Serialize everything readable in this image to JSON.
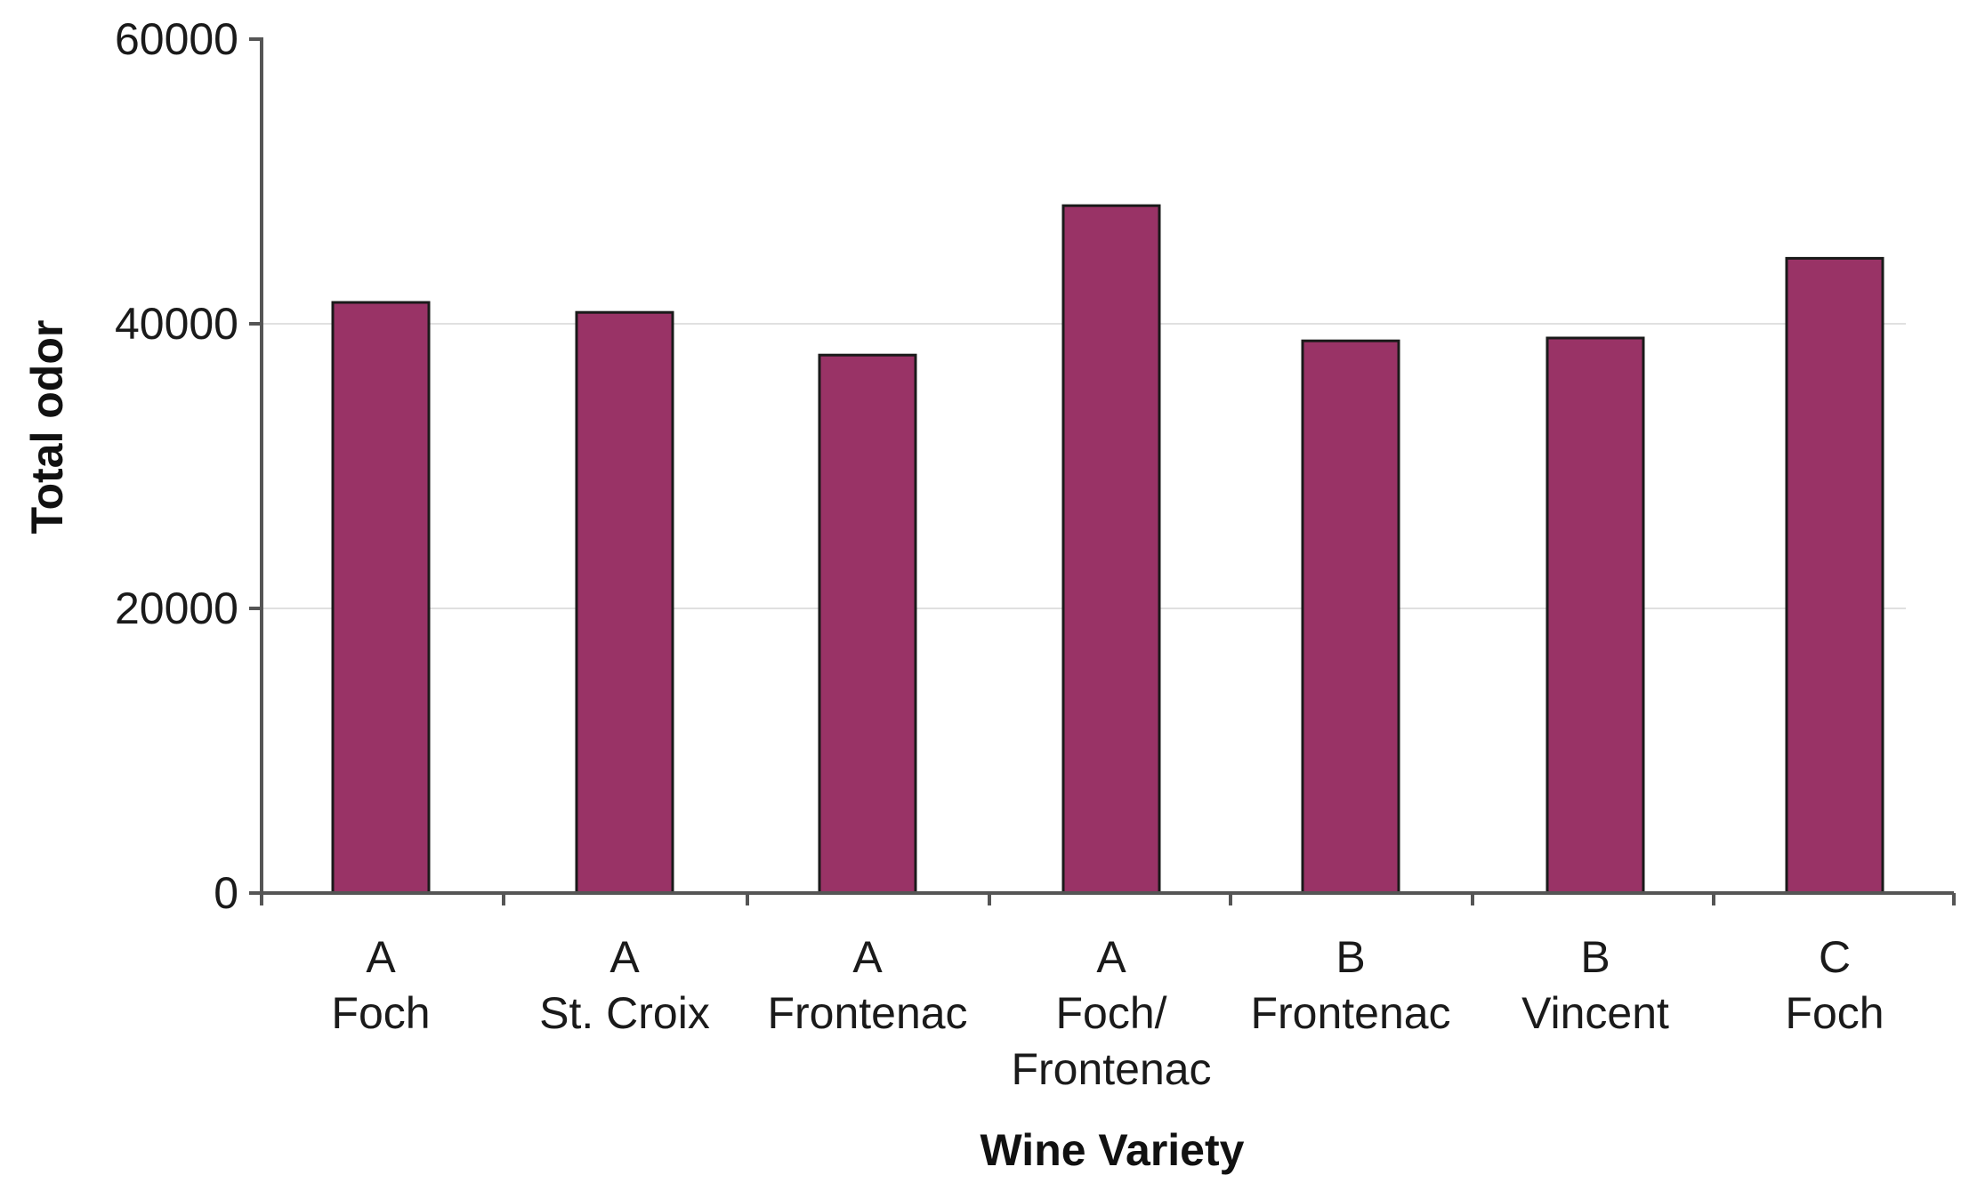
{
  "chart_data": {
    "type": "bar",
    "title": "",
    "xlabel": "Wine Variety",
    "ylabel": "Total odor",
    "categories": [
      [
        "A",
        "Foch"
      ],
      [
        "A",
        "St. Croix"
      ],
      [
        "A",
        "Frontenac"
      ],
      [
        "A",
        "Foch/",
        "Frontenac"
      ],
      [
        "B",
        "Frontenac"
      ],
      [
        "B",
        "Vincent"
      ],
      [
        "C",
        "Foch"
      ]
    ],
    "values": [
      41500,
      40800,
      37800,
      48300,
      38800,
      39000,
      44600
    ],
    "ylim": [
      0,
      60000
    ],
    "yticks": [
      0,
      20000,
      40000,
      60000
    ],
    "ytick_labels": [
      "0",
      "20000",
      "40000",
      "60000"
    ],
    "grid": "horizontal",
    "legend": "none",
    "colors": {
      "bar": "#993366",
      "bar_edge": "#1a1a1a",
      "axis": "#555555",
      "grid": "#e0e0e0"
    }
  }
}
